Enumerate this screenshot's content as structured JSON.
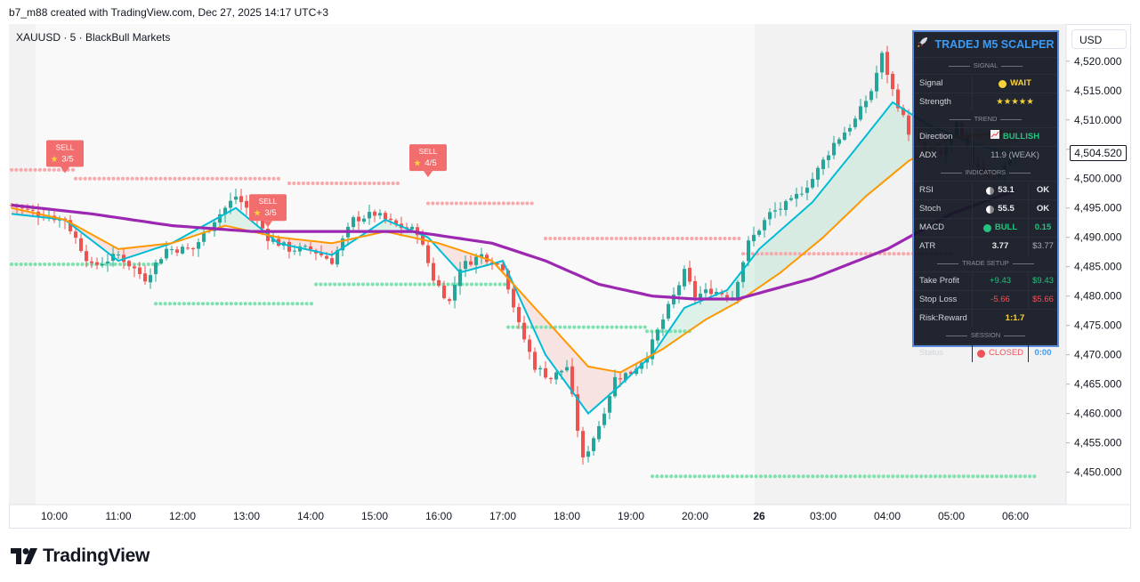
{
  "header": {
    "created_by": "b7_m88 created with TradingView.com, Dec 27, 2025 14:17 UTC+3"
  },
  "symbol": {
    "label": "XAUUSD · 5 · BlackBull Markets"
  },
  "currency_button": "USD",
  "last_price": "4,504.520",
  "footer": {
    "brand": "TradingView"
  },
  "colors": {
    "bull": "#26a69a",
    "bear": "#ef5350",
    "ema_fast": "#00bcd4",
    "ema_slow": "#ff9800",
    "ema_trend": "#9c27b0",
    "resistance": "#f7a9ab",
    "support": "#7ee2b0",
    "accent": "#3d9bf5"
  },
  "dashboard": {
    "title": "TRADEJ M5 SCALPER",
    "title_icon": "rocket-icon",
    "sections": {
      "signal": "SIGNAL",
      "trend": "TREND",
      "indicators": "INDICATORS",
      "trade_setup": "TRADE SETUP",
      "session": "SESSION"
    },
    "signal": {
      "label": "Signal",
      "value": "WAIT"
    },
    "strength": {
      "label": "Strength",
      "value": "★★★★★"
    },
    "direction": {
      "label": "Direction",
      "value": "BULLISH"
    },
    "adx": {
      "label": "ADX",
      "value": "11.9 (WEAK)"
    },
    "rsi": {
      "label": "RSI",
      "value": "53.1",
      "status": "OK"
    },
    "stoch": {
      "label": "Stoch",
      "value": "55.5",
      "status": "OK"
    },
    "macd": {
      "label": "MACD",
      "value": "BULL",
      "extra": "0.15"
    },
    "atr": {
      "label": "ATR",
      "value": "3.77",
      "extra": "$3.77"
    },
    "take_profit": {
      "label": "Take Profit",
      "value": "+9.43",
      "extra": "$9.43"
    },
    "stop_loss": {
      "label": "Stop Loss",
      "value": "-5.66",
      "extra": "$5.66"
    },
    "risk_reward": {
      "label": "Risk:Reward",
      "value": "1:1.7"
    },
    "status": {
      "label": "Status",
      "value": "CLOSED",
      "extra": "0:00"
    }
  },
  "chart_data": {
    "type": "candlestick",
    "y_axis": {
      "min": 4446,
      "max": 4523,
      "ticks": [
        4450,
        4455,
        4460,
        4465,
        4470,
        4475,
        4480,
        4485,
        4490,
        4495,
        4500,
        4505,
        4510,
        4515,
        4520
      ],
      "tick_labels": [
        "4,450.000",
        "4,455.000",
        "4,460.000",
        "4,465.000",
        "4,470.000",
        "4,475.000",
        "4,480.000",
        "4,485.000",
        "4,490.000",
        "4,495.000",
        "4,500.000",
        "4,505.000",
        "4,510.000",
        "4,515.000",
        "4,520.000"
      ]
    },
    "x_axis": {
      "labels": [
        "10:00",
        "11:00",
        "12:00",
        "13:00",
        "14:00",
        "15:00",
        "16:00",
        "17:00",
        "18:00",
        "19:00",
        "20:00",
        "26",
        "03:00",
        "04:00",
        "05:00",
        "06:00"
      ],
      "bar_index": [
        3,
        15,
        27,
        39,
        51,
        63,
        75,
        87,
        99,
        111,
        123,
        135,
        147,
        159,
        171,
        183
      ]
    },
    "session_break_bar": 135,
    "anchors": [
      [
        0,
        4495.5
      ],
      [
        5,
        4494
      ],
      [
        10,
        4493
      ],
      [
        15,
        4485
      ],
      [
        20,
        4487
      ],
      [
        25,
        4483
      ],
      [
        29,
        4488
      ],
      [
        34,
        4488
      ],
      [
        38,
        4493
      ],
      [
        42,
        4497
      ],
      [
        46,
        4493
      ],
      [
        48,
        4490
      ],
      [
        52,
        4488
      ],
      [
        56,
        4488
      ],
      [
        60,
        4486
      ],
      [
        64,
        4493
      ],
      [
        68,
        4494
      ],
      [
        72,
        4492
      ],
      [
        76,
        4491
      ],
      [
        79,
        4483
      ],
      [
        82,
        4479
      ],
      [
        84,
        4485
      ],
      [
        88,
        4487
      ],
      [
        92,
        4485
      ],
      [
        95,
        4475
      ],
      [
        98,
        4468
      ],
      [
        101,
        4466
      ],
      [
        104,
        4468
      ],
      [
        107,
        4452
      ],
      [
        110,
        4458
      ],
      [
        113,
        4466
      ],
      [
        116,
        4467
      ],
      [
        119,
        4470
      ],
      [
        122,
        4476
      ],
      [
        126,
        4484
      ],
      [
        128,
        4480
      ],
      [
        131,
        4481
      ],
      [
        135,
        4480
      ],
      [
        138,
        4489
      ],
      [
        142,
        4494
      ],
      [
        146,
        4496
      ],
      [
        150,
        4500
      ],
      [
        154,
        4506
      ],
      [
        158,
        4510
      ],
      [
        161,
        4515
      ],
      [
        163,
        4521
      ],
      [
        165,
        4515
      ],
      [
        168,
        4508
      ],
      [
        171,
        4505
      ],
      [
        174,
        4504
      ],
      [
        177,
        4509
      ],
      [
        180,
        4503
      ],
      [
        184,
        4500
      ],
      [
        188,
        4504.5
      ]
    ],
    "series": [
      {
        "name": "EMA fast",
        "anchors": [
          [
            0,
            4494
          ],
          [
            10,
            4493
          ],
          [
            20,
            4486
          ],
          [
            30,
            4489
          ],
          [
            42,
            4495
          ],
          [
            50,
            4489
          ],
          [
            60,
            4487
          ],
          [
            70,
            4493
          ],
          [
            78,
            4490
          ],
          [
            84,
            4484
          ],
          [
            92,
            4486
          ],
          [
            100,
            4470
          ],
          [
            108,
            4460
          ],
          [
            113,
            4464
          ],
          [
            120,
            4470
          ],
          [
            126,
            4478
          ],
          [
            134,
            4481
          ],
          [
            140,
            4488
          ],
          [
            150,
            4496
          ],
          [
            158,
            4505
          ],
          [
            165,
            4513
          ],
          [
            172,
            4509
          ],
          [
            180,
            4506
          ],
          [
            188,
            4504
          ]
        ]
      },
      {
        "name": "EMA slow",
        "anchors": [
          [
            0,
            4495
          ],
          [
            10,
            4493
          ],
          [
            20,
            4488
          ],
          [
            30,
            4489
          ],
          [
            40,
            4492
          ],
          [
            50,
            4490
          ],
          [
            60,
            4489
          ],
          [
            70,
            4491
          ],
          [
            80,
            4489
          ],
          [
            90,
            4486
          ],
          [
            100,
            4476
          ],
          [
            108,
            4468
          ],
          [
            114,
            4467
          ],
          [
            122,
            4471
          ],
          [
            130,
            4476
          ],
          [
            136,
            4479
          ],
          [
            144,
            4484
          ],
          [
            152,
            4490
          ],
          [
            160,
            4497
          ],
          [
            168,
            4503
          ],
          [
            176,
            4507
          ],
          [
            188,
            4508
          ]
        ]
      },
      {
        "name": "EMA trend",
        "anchors": [
          [
            0,
            4495.5
          ],
          [
            15,
            4494
          ],
          [
            30,
            4492
          ],
          [
            45,
            4491
          ],
          [
            60,
            4491
          ],
          [
            75,
            4491
          ],
          [
            90,
            4489
          ],
          [
            100,
            4486
          ],
          [
            110,
            4482
          ],
          [
            120,
            4480
          ],
          [
            128,
            4479.5
          ],
          [
            136,
            4479.5
          ],
          [
            150,
            4483
          ],
          [
            164,
            4488
          ],
          [
            176,
            4494
          ],
          [
            188,
            4498
          ]
        ]
      }
    ],
    "levels": [
      {
        "kind": "resistance",
        "y": 4501.5,
        "x": [
          0,
          12
        ]
      },
      {
        "kind": "resistance",
        "y": 4500,
        "x": [
          12,
          50
        ]
      },
      {
        "kind": "resistance",
        "y": 4499.2,
        "x": [
          52,
          73
        ]
      },
      {
        "kind": "resistance",
        "y": 4495.8,
        "x": [
          78,
          98
        ]
      },
      {
        "kind": "resistance",
        "y": 4489.8,
        "x": [
          100,
          137
        ]
      },
      {
        "kind": "resistance",
        "y": 4487.2,
        "x": [
          137,
          176
        ]
      },
      {
        "kind": "support",
        "y": 4485.4,
        "x": [
          0,
          28
        ]
      },
      {
        "kind": "support",
        "y": 4478.7,
        "x": [
          27,
          57
        ]
      },
      {
        "kind": "support",
        "y": 4482,
        "x": [
          57,
          93
        ]
      },
      {
        "kind": "support",
        "y": 4474.7,
        "x": [
          93,
          119
        ]
      },
      {
        "kind": "support",
        "y": 4474,
        "x": [
          119,
          127
        ]
      },
      {
        "kind": "support",
        "y": 4449.3,
        "x": [
          120,
          192
        ]
      }
    ],
    "signals": [
      {
        "label": "SELL",
        "rating": "3/5",
        "bar": 10,
        "y": 4502
      },
      {
        "label": "SELL",
        "rating": "3/5",
        "bar": 48,
        "y": 4492.8
      },
      {
        "label": "SELL",
        "rating": "4/5",
        "bar": 78,
        "y": 4501.3
      }
    ]
  }
}
